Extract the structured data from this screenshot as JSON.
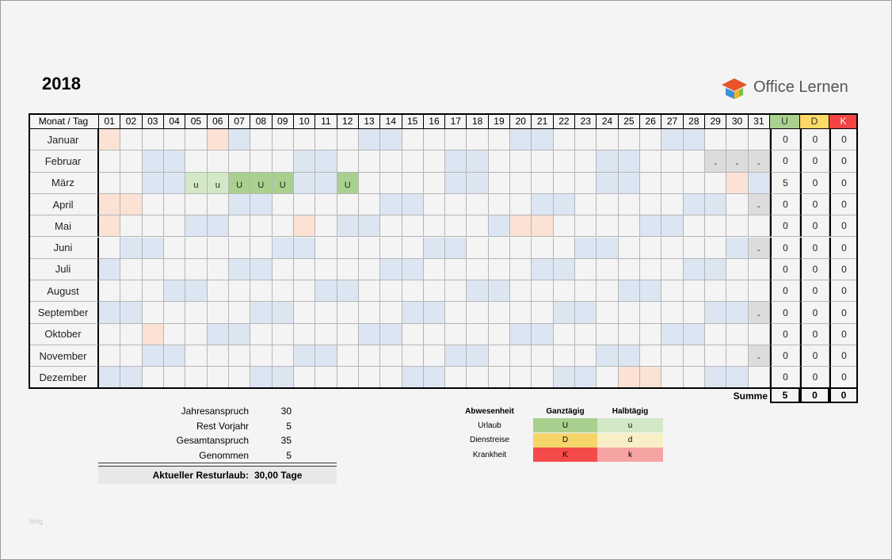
{
  "title": "2018",
  "logo": "Office Lernen",
  "watermark": "blog",
  "calendar": {
    "header": {
      "month_day": "Monat / Tag",
      "days": [
        "01",
        "02",
        "03",
        "04",
        "05",
        "06",
        "07",
        "08",
        "09",
        "10",
        "11",
        "12",
        "13",
        "14",
        "15",
        "16",
        "17",
        "18",
        "19",
        "20",
        "21",
        "22",
        "23",
        "24",
        "25",
        "26",
        "27",
        "28",
        "29",
        "30",
        "31"
      ],
      "totals": [
        "U",
        "D",
        "K"
      ]
    },
    "months": [
      {
        "name": "Januar",
        "days": [
          null,
          null,
          null,
          null,
          null,
          null,
          null,
          null,
          null,
          null,
          null,
          null,
          null,
          null,
          null,
          null,
          null,
          null,
          null,
          null,
          null,
          null,
          null,
          null,
          null,
          null,
          null,
          null,
          null,
          null,
          null
        ],
        "totals": [
          0,
          0,
          0
        ]
      },
      {
        "name": "Februar",
        "days": [
          null,
          null,
          null,
          null,
          null,
          null,
          null,
          null,
          null,
          null,
          null,
          null,
          null,
          null,
          null,
          null,
          null,
          null,
          null,
          null,
          null,
          null,
          null,
          null,
          null,
          null,
          null,
          null,
          "-",
          "-",
          "-"
        ],
        "totals": [
          0,
          0,
          0
        ]
      },
      {
        "name": "März",
        "days": [
          null,
          null,
          null,
          null,
          "u",
          "u",
          "U",
          "U",
          "U",
          null,
          null,
          "U",
          null,
          null,
          null,
          null,
          null,
          null,
          null,
          null,
          null,
          null,
          null,
          null,
          null,
          null,
          null,
          null,
          null,
          null,
          null
        ],
        "totals": [
          5,
          0,
          0
        ]
      },
      {
        "name": "April",
        "days": [
          null,
          null,
          null,
          null,
          null,
          null,
          null,
          null,
          null,
          null,
          null,
          null,
          null,
          null,
          null,
          null,
          null,
          null,
          null,
          null,
          null,
          null,
          null,
          null,
          null,
          null,
          null,
          null,
          null,
          null,
          "-"
        ],
        "totals": [
          0,
          0,
          0
        ]
      },
      {
        "name": "Mai",
        "days": [
          null,
          null,
          null,
          null,
          null,
          null,
          null,
          null,
          null,
          null,
          null,
          null,
          null,
          null,
          null,
          null,
          null,
          null,
          null,
          null,
          null,
          null,
          null,
          null,
          null,
          null,
          null,
          null,
          null,
          null,
          null
        ],
        "totals": [
          0,
          0,
          0
        ]
      },
      {
        "name": "Juni",
        "days": [
          null,
          null,
          null,
          null,
          null,
          null,
          null,
          null,
          null,
          null,
          null,
          null,
          null,
          null,
          null,
          null,
          null,
          null,
          null,
          null,
          null,
          null,
          null,
          null,
          null,
          null,
          null,
          null,
          null,
          null,
          "-"
        ],
        "totals": [
          0,
          0,
          0
        ]
      },
      {
        "name": "Juli",
        "days": [
          null,
          null,
          null,
          null,
          null,
          null,
          null,
          null,
          null,
          null,
          null,
          null,
          null,
          null,
          null,
          null,
          null,
          null,
          null,
          null,
          null,
          null,
          null,
          null,
          null,
          null,
          null,
          null,
          null,
          null,
          null
        ],
        "totals": [
          0,
          0,
          0
        ]
      },
      {
        "name": "August",
        "days": [
          null,
          null,
          null,
          null,
          null,
          null,
          null,
          null,
          null,
          null,
          null,
          null,
          null,
          null,
          null,
          null,
          null,
          null,
          null,
          null,
          null,
          null,
          null,
          null,
          null,
          null,
          null,
          null,
          null,
          null,
          null
        ],
        "totals": [
          0,
          0,
          0
        ]
      },
      {
        "name": "September",
        "days": [
          null,
          null,
          null,
          null,
          null,
          null,
          null,
          null,
          null,
          null,
          null,
          null,
          null,
          null,
          null,
          null,
          null,
          null,
          null,
          null,
          null,
          null,
          null,
          null,
          null,
          null,
          null,
          null,
          null,
          null,
          "-"
        ],
        "totals": [
          0,
          0,
          0
        ]
      },
      {
        "name": "Oktober",
        "days": [
          null,
          null,
          null,
          null,
          null,
          null,
          null,
          null,
          null,
          null,
          null,
          null,
          null,
          null,
          null,
          null,
          null,
          null,
          null,
          null,
          null,
          null,
          null,
          null,
          null,
          null,
          null,
          null,
          null,
          null,
          null
        ],
        "totals": [
          0,
          0,
          0
        ]
      },
      {
        "name": "November",
        "days": [
          null,
          null,
          null,
          null,
          null,
          null,
          null,
          null,
          null,
          null,
          null,
          null,
          null,
          null,
          null,
          null,
          null,
          null,
          null,
          null,
          null,
          null,
          null,
          null,
          null,
          null,
          null,
          null,
          null,
          null,
          "-"
        ],
        "totals": [
          0,
          0,
          0
        ]
      },
      {
        "name": "Dezember",
        "days": [
          null,
          null,
          null,
          null,
          null,
          null,
          null,
          null,
          null,
          null,
          null,
          null,
          null,
          null,
          null,
          null,
          null,
          null,
          null,
          null,
          null,
          null,
          null,
          null,
          null,
          null,
          null,
          null,
          null,
          null,
          null
        ],
        "totals": [
          0,
          0,
          0
        ]
      }
    ],
    "sum_label": "Summe",
    "sums": [
      5,
      0,
      0
    ]
  },
  "summary": {
    "rows": [
      {
        "label": "Jahresanspruch",
        "value": 30
      },
      {
        "label": "Rest Vorjahr",
        "value": 5
      },
      {
        "label": "Gesamtanspruch",
        "value": 35
      },
      {
        "label": "Genommen",
        "value": 5
      }
    ],
    "result_label": "Aktueller Resturlaub:",
    "result_value": "30,00 Tage"
  },
  "legend": {
    "headers": [
      "Abwesenheit",
      "Ganztägig",
      "Halbtägig"
    ],
    "rows": [
      {
        "label": "Urlaub",
        "full": "U",
        "half": "u"
      },
      {
        "label": "Dienstreise",
        "full": "D",
        "half": "d"
      },
      {
        "label": "Krankheit",
        "full": "K",
        "half": "k"
      }
    ]
  }
}
